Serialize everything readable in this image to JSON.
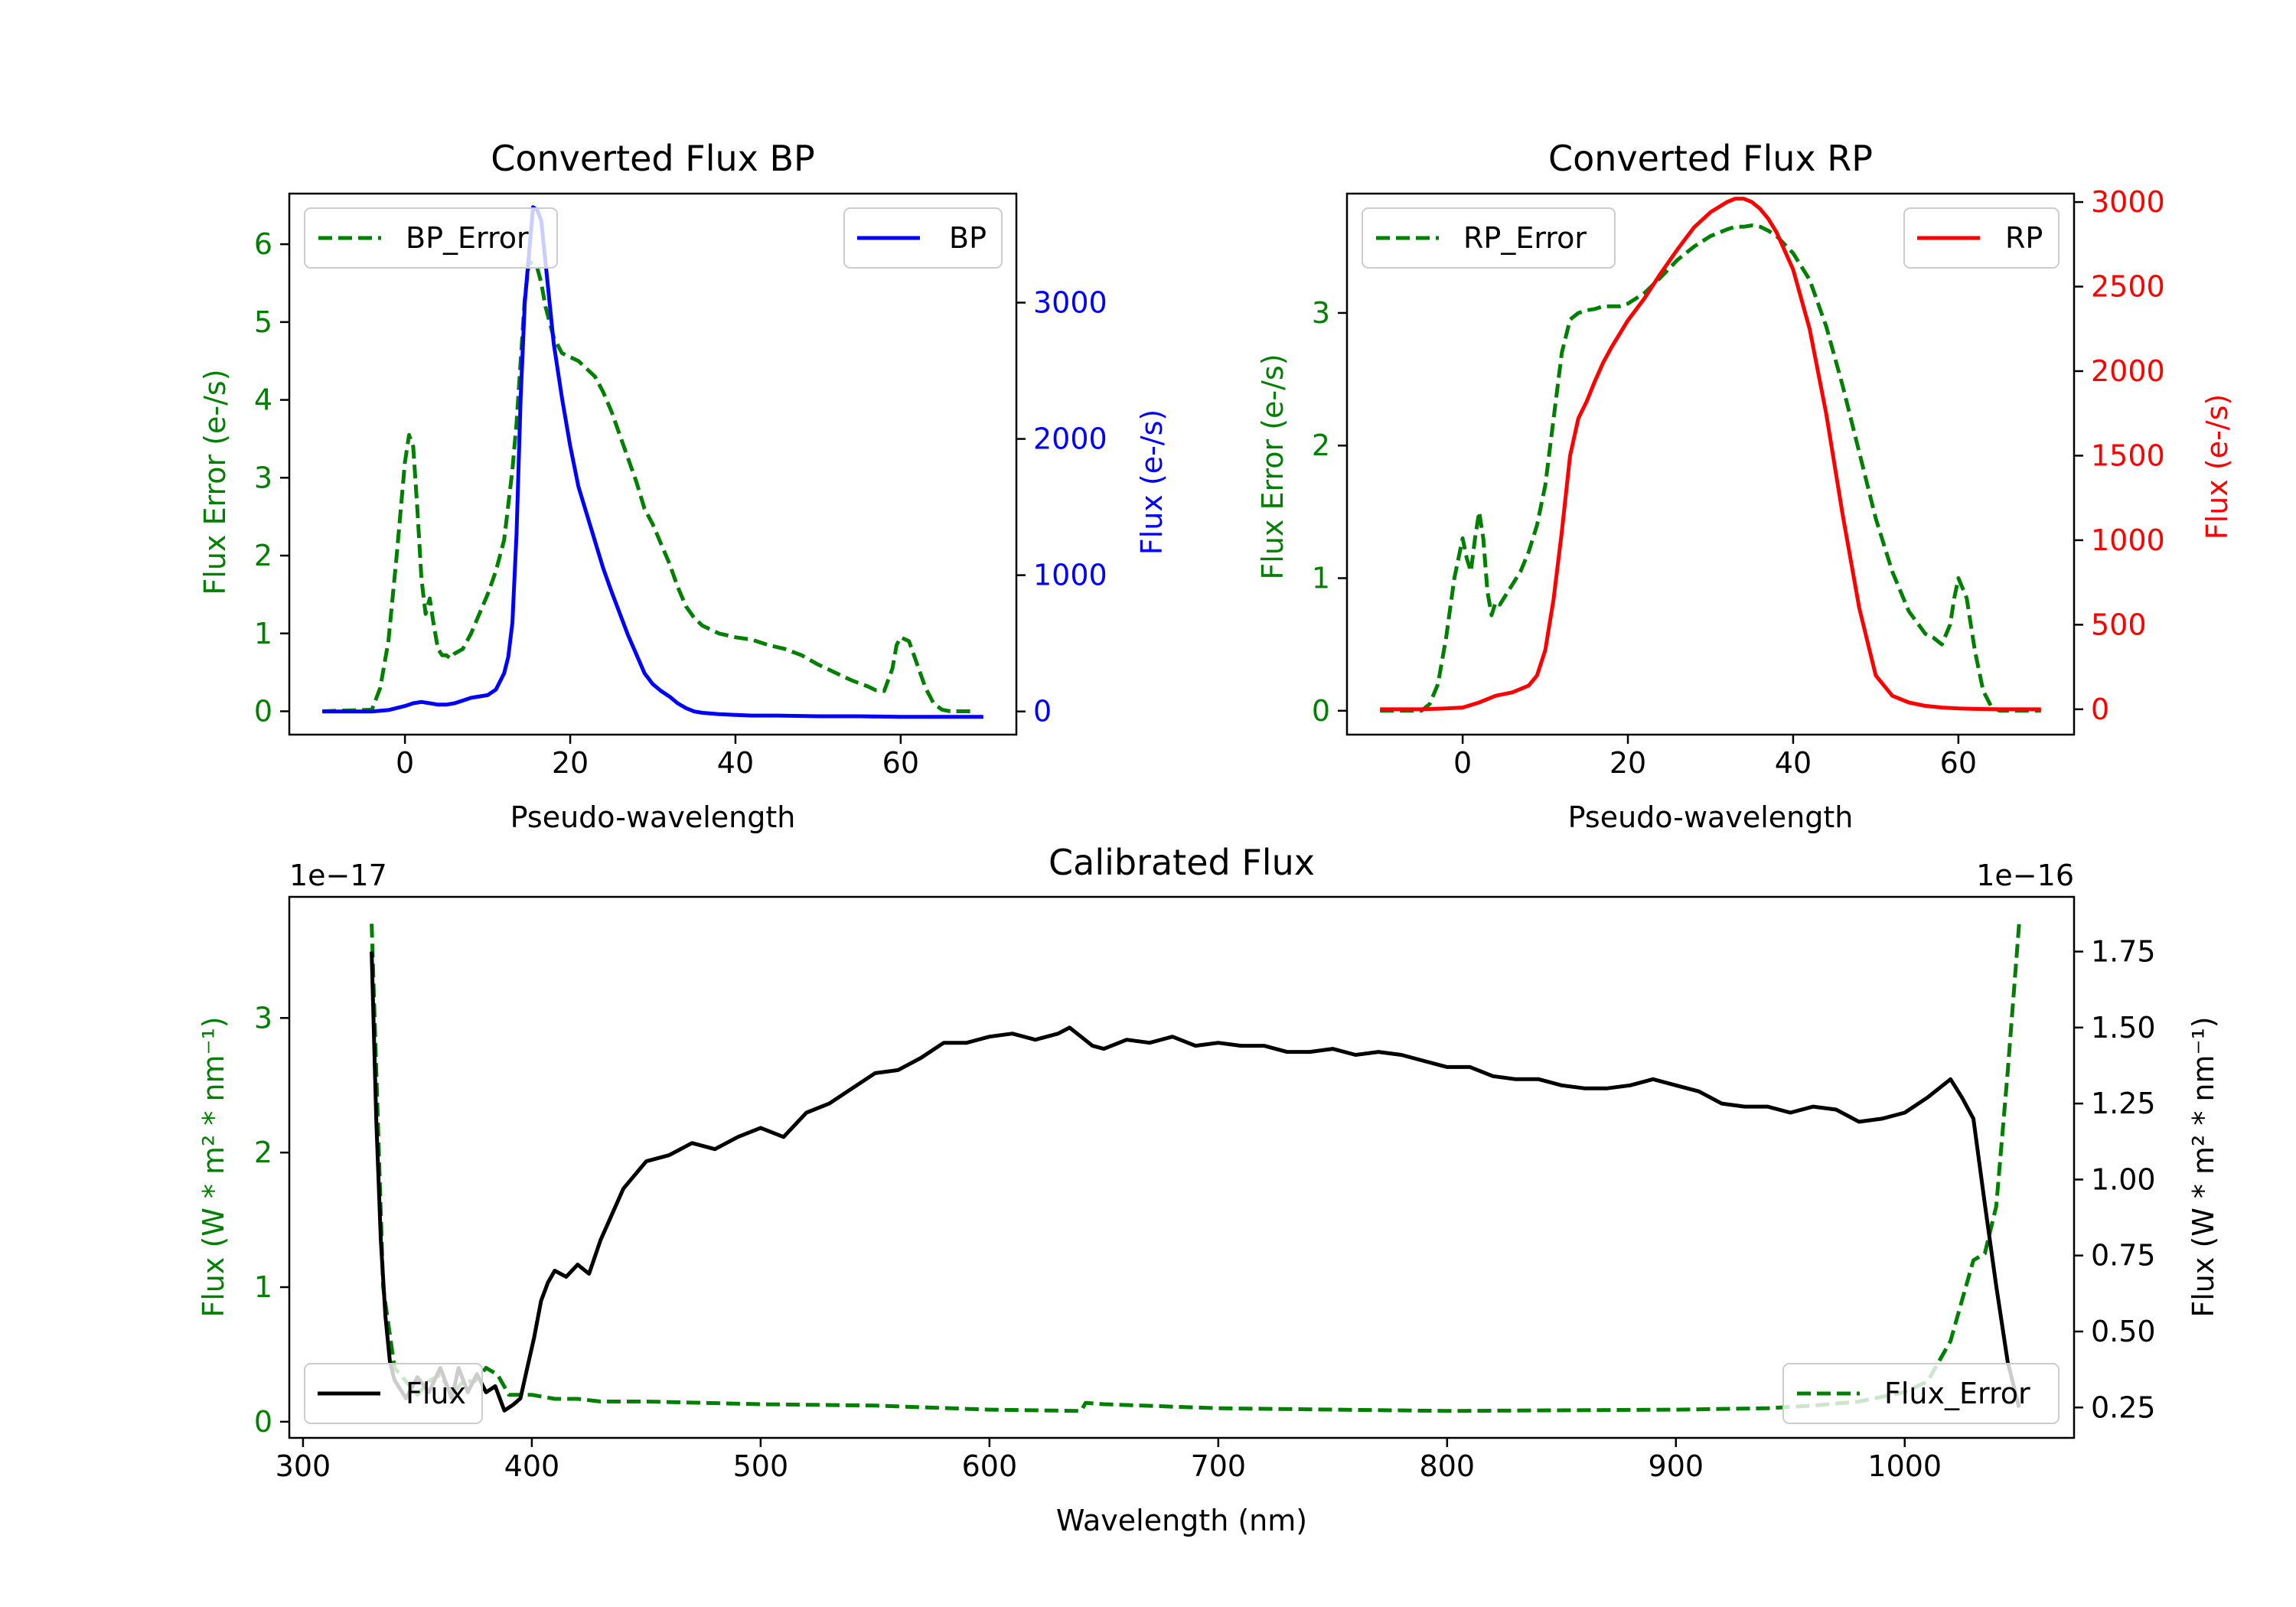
{
  "colors": {
    "green": "#008000",
    "blue": "#0000ff",
    "red": "#ff0000",
    "black": "#000000"
  },
  "chart_data": [
    {
      "type": "line",
      "title": "Converted Flux BP",
      "xlabel": "Pseudo-wavelength",
      "ylabel_left": "Flux Error (e-/s)",
      "ylabel_right": "Flux (e-/s)",
      "xlim": [
        -14,
        74
      ],
      "ylim_left": [
        -0.3,
        6.65
      ],
      "ylim_right": [
        -170,
        3800
      ],
      "xticks": [
        "0",
        "20",
        "40",
        "60"
      ],
      "xtick_values": [
        0,
        20,
        40,
        60
      ],
      "yticks_left": [
        "0",
        "1",
        "2",
        "3",
        "4",
        "5",
        "6"
      ],
      "yticks_left_values": [
        0,
        1,
        2,
        3,
        4,
        5,
        6
      ],
      "yticks_right": [
        "0",
        "1000",
        "2000",
        "3000"
      ],
      "yticks_right_values": [
        0,
        1000,
        2000,
        3000
      ],
      "legend_left": "BP_Error",
      "legend_right": "BP",
      "series": [
        {
          "name": "BP_Error",
          "axis": "left",
          "style": "dashed",
          "color": "#008000",
          "x": [
            -10,
            -4,
            -3,
            -2,
            -1,
            0,
            0.5,
            1,
            1.5,
            2,
            2.5,
            3,
            3.5,
            4,
            4.5,
            5,
            5.5,
            6,
            7,
            8,
            9,
            10,
            11,
            12,
            13,
            13.5,
            14,
            14.5,
            15,
            15.5,
            16,
            16.5,
            17,
            17.5,
            18,
            19,
            20,
            21,
            22,
            23,
            24,
            25,
            26,
            27,
            28,
            29,
            30,
            31,
            32,
            33,
            34,
            35,
            36,
            37,
            38,
            40,
            42,
            44,
            46,
            48,
            50,
            52,
            54,
            56,
            57,
            58,
            59,
            59.5,
            60,
            61,
            62,
            63,
            64,
            65,
            66,
            67,
            68,
            69
          ],
          "y": [
            0,
            0.02,
            0.3,
            0.9,
            2.0,
            3.2,
            3.55,
            3.4,
            2.6,
            1.7,
            1.25,
            1.45,
            1.1,
            0.8,
            0.72,
            0.72,
            0.68,
            0.74,
            0.8,
            1.0,
            1.25,
            1.5,
            1.8,
            2.2,
            3.1,
            3.7,
            4.5,
            5.3,
            5.78,
            5.75,
            5.7,
            5.5,
            5.2,
            5.0,
            4.8,
            4.6,
            4.55,
            4.5,
            4.4,
            4.3,
            4.1,
            3.85,
            3.55,
            3.25,
            2.95,
            2.6,
            2.4,
            2.15,
            1.9,
            1.6,
            1.35,
            1.2,
            1.1,
            1.05,
            1.0,
            0.95,
            0.92,
            0.85,
            0.8,
            0.72,
            0.6,
            0.5,
            0.4,
            0.32,
            0.27,
            0.26,
            0.55,
            0.85,
            0.95,
            0.9,
            0.6,
            0.3,
            0.1,
            0.02,
            0,
            0,
            0,
            0
          ]
        },
        {
          "name": "BP",
          "axis": "right",
          "style": "solid",
          "color": "#0000ff",
          "x": [
            -10,
            -6,
            -4,
            -2,
            0,
            1,
            2,
            3,
            4,
            5,
            6,
            7,
            8,
            9,
            10,
            11,
            12,
            12.5,
            13,
            13.5,
            14,
            14.5,
            15,
            15.5,
            16,
            16.5,
            17,
            17.5,
            18,
            19,
            20,
            21,
            22,
            23,
            24,
            25,
            26,
            27,
            28,
            29,
            30,
            31,
            32,
            33,
            34,
            35,
            36,
            37,
            38,
            40,
            42,
            45,
            50,
            55,
            60,
            65,
            70
          ],
          "y": [
            0,
            0,
            0,
            10,
            40,
            60,
            70,
            60,
            50,
            50,
            60,
            80,
            100,
            110,
            120,
            160,
            280,
            400,
            650,
            1300,
            2300,
            3000,
            3350,
            3700,
            3680,
            3600,
            3300,
            3000,
            2700,
            2300,
            1950,
            1650,
            1450,
            1250,
            1050,
            880,
            720,
            560,
            420,
            280,
            200,
            150,
            110,
            60,
            25,
            0,
            -10,
            -15,
            -20,
            -25,
            -30,
            -30,
            -35,
            -35,
            -40,
            -40,
            -40
          ]
        }
      ]
    },
    {
      "type": "line",
      "title": "Converted Flux RP",
      "xlabel": "Pseudo-wavelength",
      "ylabel_left": "Flux Error (e-/s)",
      "ylabel_right": "Flux (e-/s)",
      "xlim": [
        -14,
        74
      ],
      "ylim_left": [
        -0.18,
        3.9
      ],
      "ylim_right": [
        -150,
        3050
      ],
      "xticks": [
        "0",
        "20",
        "40",
        "60"
      ],
      "xtick_values": [
        0,
        20,
        40,
        60
      ],
      "yticks_left": [
        "0",
        "1",
        "2",
        "3"
      ],
      "yticks_left_values": [
        0,
        1,
        2,
        3
      ],
      "yticks_right": [
        "0",
        "500",
        "1000",
        "1500",
        "2000",
        "2500",
        "3000"
      ],
      "yticks_right_values": [
        0,
        500,
        1000,
        1500,
        2000,
        2500,
        3000
      ],
      "legend_left": "RP_Error",
      "legend_right": "RP",
      "series": [
        {
          "name": "RP_Error",
          "axis": "left",
          "style": "dashed",
          "color": "#008000",
          "x": [
            -10,
            -5,
            -4,
            -3,
            -2,
            -1,
            0,
            0.5,
            1,
            1.5,
            2,
            2.5,
            3,
            3.5,
            4,
            4.5,
            5,
            6,
            7,
            8,
            9,
            10,
            11,
            12,
            13,
            14,
            15,
            16,
            17,
            18,
            19,
            20,
            22,
            24,
            26,
            28,
            30,
            32,
            33,
            34,
            35,
            36,
            37,
            38,
            40,
            42,
            44,
            46,
            48,
            50,
            52,
            54,
            56,
            57,
            58,
            59,
            59.5,
            60,
            61,
            62,
            63,
            64,
            65,
            66,
            68,
            70
          ],
          "y": [
            0,
            0,
            0.05,
            0.2,
            0.55,
            1.0,
            1.3,
            1.15,
            1.05,
            1.3,
            1.5,
            1.3,
            0.9,
            0.72,
            0.82,
            0.8,
            0.85,
            0.95,
            1.05,
            1.2,
            1.4,
            1.7,
            2.2,
            2.7,
            2.95,
            3.0,
            3.02,
            3.03,
            3.05,
            3.05,
            3.05,
            3.07,
            3.15,
            3.27,
            3.4,
            3.5,
            3.58,
            3.63,
            3.65,
            3.65,
            3.66,
            3.65,
            3.62,
            3.58,
            3.45,
            3.25,
            2.9,
            2.45,
            1.95,
            1.45,
            1.05,
            0.75,
            0.58,
            0.55,
            0.5,
            0.65,
            0.85,
            1.0,
            0.85,
            0.45,
            0.15,
            0.03,
            0,
            0,
            0,
            0
          ]
        },
        {
          "name": "RP",
          "axis": "right",
          "style": "solid",
          "color": "#ff0000",
          "x": [
            -10,
            -5,
            -2,
            0,
            2,
            4,
            6,
            8,
            9,
            10,
            11,
            12,
            13,
            14,
            15,
            16,
            17,
            18,
            20,
            22,
            24,
            26,
            28,
            30,
            32,
            33,
            34,
            35,
            36,
            37,
            38,
            40,
            42,
            44,
            46,
            48,
            50,
            52,
            54,
            56,
            58,
            60,
            62,
            65,
            70
          ],
          "y": [
            0,
            0,
            5,
            10,
            40,
            80,
            100,
            140,
            200,
            350,
            650,
            1050,
            1500,
            1720,
            1820,
            1940,
            2050,
            2140,
            2300,
            2430,
            2580,
            2720,
            2850,
            2940,
            3000,
            3020,
            3020,
            3000,
            2960,
            2900,
            2820,
            2600,
            2250,
            1750,
            1150,
            600,
            200,
            80,
            40,
            20,
            10,
            5,
            2,
            0,
            0
          ]
        }
      ]
    },
    {
      "type": "line",
      "title": "Calibrated Flux",
      "xlabel": "Wavelength (nm)",
      "ylabel_left": "Flux (W * m² * nm⁻¹)",
      "ylabel_right": "Flux (W * m² * nm⁻¹)",
      "left_offset_text": "1e−17",
      "right_offset_text": "1e−16",
      "xlim": [
        294,
        1074
      ],
      "ylim_left": [
        -0.12,
        3.9
      ],
      "ylim_right": [
        0.15,
        1.93
      ],
      "xticks": [
        "300",
        "400",
        "500",
        "600",
        "700",
        "800",
        "900",
        "1000"
      ],
      "xtick_values": [
        300,
        400,
        500,
        600,
        700,
        800,
        900,
        1000
      ],
      "yticks_left": [
        "0",
        "1",
        "2",
        "3"
      ],
      "yticks_left_values": [
        0,
        1,
        2,
        3
      ],
      "yticks_right": [
        "0.25",
        "0.50",
        "0.75",
        "1.00",
        "1.25",
        "1.50",
        "1.75"
      ],
      "yticks_right_values": [
        0.25,
        0.5,
        0.75,
        1.0,
        1.25,
        1.5,
        1.75
      ],
      "legend_left": "Flux",
      "legend_right": "Flux_Error",
      "series": [
        {
          "name": "Flux_Error",
          "axis": "left",
          "style": "dashed",
          "color": "#008000",
          "x": [
            330,
            335,
            340,
            345,
            350,
            355,
            360,
            365,
            370,
            375,
            380,
            385,
            390,
            395,
            400,
            410,
            420,
            430,
            450,
            500,
            550,
            600,
            640,
            642,
            650,
            700,
            800,
            900,
            940,
            960,
            980,
            1000,
            1010,
            1015,
            1020,
            1025,
            1030,
            1035,
            1040,
            1045,
            1050
          ],
          "y": [
            3.7,
            1.0,
            0.4,
            0.3,
            0.2,
            0.3,
            0.35,
            0.2,
            0.3,
            0.3,
            0.4,
            0.35,
            0.2,
            0.2,
            0.2,
            0.17,
            0.17,
            0.15,
            0.15,
            0.13,
            0.12,
            0.09,
            0.08,
            0.14,
            0.13,
            0.1,
            0.08,
            0.09,
            0.1,
            0.12,
            0.15,
            0.22,
            0.3,
            0.45,
            0.6,
            0.9,
            1.2,
            1.25,
            1.6,
            2.6,
            3.7
          ]
        },
        {
          "name": "Flux",
          "axis": "right",
          "style": "solid",
          "color": "#000000",
          "x": [
            330,
            332,
            334,
            336,
            338,
            340,
            345,
            350,
            355,
            360,
            365,
            368,
            372,
            376,
            380,
            384,
            388,
            392,
            395,
            398,
            401,
            404,
            407,
            410,
            415,
            420,
            425,
            430,
            440,
            450,
            460,
            470,
            480,
            490,
            500,
            510,
            520,
            530,
            540,
            550,
            560,
            570,
            580,
            590,
            600,
            610,
            620,
            630,
            635,
            640,
            645,
            650,
            660,
            670,
            680,
            690,
            700,
            710,
            720,
            730,
            740,
            750,
            760,
            770,
            780,
            790,
            800,
            810,
            820,
            830,
            840,
            850,
            860,
            870,
            880,
            890,
            900,
            910,
            920,
            930,
            940,
            950,
            960,
            970,
            980,
            990,
            1000,
            1010,
            1020,
            1025,
            1030,
            1035,
            1040,
            1045,
            1050
          ],
          "y": [
            1.75,
            1.2,
            0.8,
            0.55,
            0.4,
            0.34,
            0.28,
            0.35,
            0.3,
            0.38,
            0.28,
            0.38,
            0.3,
            0.36,
            0.3,
            0.32,
            0.24,
            0.26,
            0.28,
            0.38,
            0.48,
            0.6,
            0.66,
            0.7,
            0.68,
            0.72,
            0.69,
            0.8,
            0.97,
            1.06,
            1.08,
            1.12,
            1.1,
            1.14,
            1.17,
            1.14,
            1.22,
            1.25,
            1.3,
            1.35,
            1.36,
            1.4,
            1.45,
            1.45,
            1.47,
            1.48,
            1.46,
            1.48,
            1.5,
            1.47,
            1.44,
            1.43,
            1.46,
            1.45,
            1.47,
            1.44,
            1.45,
            1.44,
            1.44,
            1.42,
            1.42,
            1.43,
            1.41,
            1.42,
            1.41,
            1.39,
            1.37,
            1.37,
            1.34,
            1.33,
            1.33,
            1.31,
            1.3,
            1.3,
            1.31,
            1.33,
            1.31,
            1.29,
            1.25,
            1.24,
            1.24,
            1.22,
            1.24,
            1.23,
            1.19,
            1.2,
            1.22,
            1.27,
            1.33,
            1.27,
            1.2,
            0.92,
            0.65,
            0.4,
            0.25
          ]
        }
      ]
    }
  ]
}
